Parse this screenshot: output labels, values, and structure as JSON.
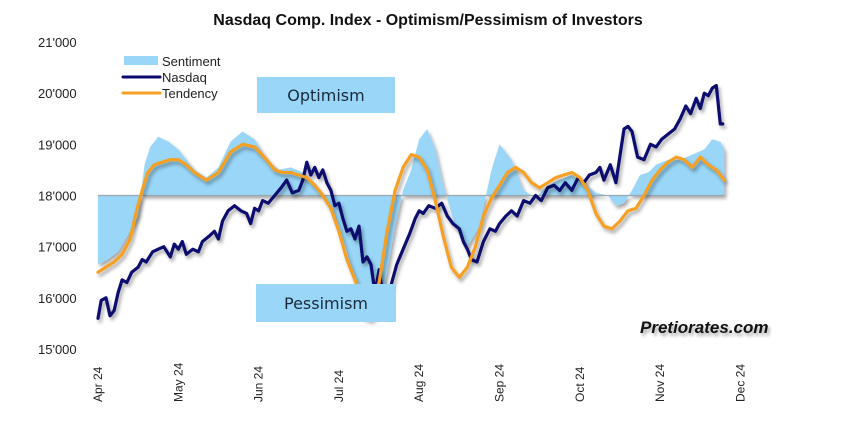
{
  "chart_data": {
    "type": "line",
    "title": "Nasdaq Comp. Index - Optimism/Pessimism of Investors",
    "xlabel": "",
    "ylabel": "",
    "ylim": [
      15000,
      21000
    ],
    "baseline": 18000,
    "yticks": [
      "15'000",
      "16'000",
      "17'000",
      "18'000",
      "19'000",
      "20'000",
      "21'000"
    ],
    "ytick_values": [
      15000,
      16000,
      17000,
      18000,
      19000,
      20000,
      21000
    ],
    "xticks": [
      "Apr 24",
      "May 24",
      "Jun 24",
      "Jul 24",
      "Aug 24",
      "Sep 24",
      "Oct 24",
      "Nov 24",
      "Dec 24"
    ],
    "x_unit": "months since Apr 24",
    "grid": false,
    "legend": {
      "position": "top-left",
      "entries": [
        {
          "name": "Sentiment",
          "kind": "area",
          "color": "#99d6f7"
        },
        {
          "name": "Nasdaq",
          "kind": "line",
          "color": "#0a0a6e"
        },
        {
          "name": "Tendency",
          "kind": "line",
          "color": "#f5a020"
        }
      ]
    },
    "annotations": [
      {
        "text": "Optimism",
        "x": 2.2,
        "y": 20000
      },
      {
        "text": "Pessimism",
        "x": 2.25,
        "y": 16100
      }
    ],
    "series": [
      {
        "name": "Sentiment",
        "color": "#99d6f7",
        "x": [
          0,
          0.12,
          0.25,
          0.4,
          0.5,
          0.58,
          0.65,
          0.75,
          0.88,
          1.0,
          1.1,
          1.2,
          1.35,
          1.5,
          1.65,
          1.8,
          1.95,
          2.1,
          2.25,
          2.4,
          2.55,
          2.7,
          2.85,
          3.0,
          3.1,
          3.2,
          3.3,
          3.4,
          3.5,
          3.6,
          3.7,
          3.8,
          3.9,
          4.0,
          4.1,
          4.2,
          4.3,
          4.45,
          4.6,
          4.75,
          4.9,
          5.0,
          5.15,
          5.3,
          5.45,
          5.6,
          5.75,
          5.9,
          6.05,
          6.2,
          6.35,
          6.45,
          6.55,
          6.65,
          6.75,
          6.85,
          6.95,
          7.1,
          7.25,
          7.4,
          7.55,
          7.65,
          7.75,
          7.8
        ],
        "values": [
          16650,
          16750,
          16900,
          17300,
          17600,
          18600,
          18950,
          19150,
          19050,
          18900,
          18700,
          18500,
          18350,
          18550,
          19050,
          19250,
          19100,
          18700,
          18500,
          18550,
          18450,
          18200,
          17900,
          17400,
          16900,
          16300,
          15600,
          15550,
          15700,
          16500,
          17400,
          18100,
          18500,
          19100,
          19300,
          18900,
          18200,
          17400,
          17000,
          17400,
          18500,
          19000,
          18700,
          18100,
          17950,
          18200,
          18300,
          18400,
          18250,
          18050,
          18000,
          17800,
          17850,
          18100,
          18400,
          18450,
          18600,
          18700,
          18700,
          18800,
          18900,
          19100,
          19050,
          18900
        ]
      },
      {
        "name": "Nasdaq",
        "color": "#0a0a6e",
        "x": [
          0,
          0.04,
          0.1,
          0.15,
          0.2,
          0.25,
          0.3,
          0.36,
          0.42,
          0.5,
          0.55,
          0.6,
          0.68,
          0.75,
          0.82,
          0.9,
          0.95,
          1.0,
          1.05,
          1.1,
          1.18,
          1.25,
          1.3,
          1.38,
          1.45,
          1.5,
          1.55,
          1.62,
          1.7,
          1.78,
          1.85,
          1.9,
          1.95,
          2.0,
          2.05,
          2.12,
          2.2,
          2.28,
          2.35,
          2.42,
          2.5,
          2.55,
          2.6,
          2.65,
          2.7,
          2.75,
          2.8,
          2.85,
          2.9,
          2.95,
          3.0,
          3.05,
          3.1,
          3.15,
          3.2,
          3.25,
          3.3,
          3.35,
          3.4,
          3.45,
          3.5,
          3.55,
          3.6,
          3.65,
          3.72,
          3.8,
          3.88,
          3.95,
          4.0,
          4.05,
          4.12,
          4.2,
          4.28,
          4.35,
          4.42,
          4.5,
          4.55,
          4.6,
          4.65,
          4.72,
          4.8,
          4.88,
          4.95,
          5.0,
          5.08,
          5.15,
          5.22,
          5.3,
          5.38,
          5.45,
          5.52,
          5.6,
          5.68,
          5.75,
          5.82,
          5.9,
          5.98,
          6.05,
          6.12,
          6.2,
          6.25,
          6.3,
          6.38,
          6.45,
          6.55,
          6.6,
          6.65,
          6.72,
          6.8,
          6.88,
          6.95,
          7.02,
          7.1,
          7.18,
          7.25,
          7.32,
          7.38,
          7.45,
          7.5,
          7.55,
          7.6,
          7.65,
          7.7,
          7.75,
          7.78
        ],
        "values": [
          15600,
          15950,
          16000,
          15650,
          15750,
          16100,
          16350,
          16300,
          16500,
          16600,
          16750,
          16700,
          16900,
          16950,
          17000,
          16800,
          17050,
          16950,
          17100,
          16850,
          16950,
          16900,
          17100,
          17200,
          17300,
          17150,
          17500,
          17700,
          17800,
          17700,
          17650,
          17450,
          17750,
          17700,
          17900,
          17850,
          18000,
          18150,
          18300,
          18050,
          18100,
          18300,
          18650,
          18400,
          18550,
          18350,
          18500,
          18250,
          18100,
          17800,
          17850,
          17550,
          17300,
          17350,
          17150,
          17400,
          16700,
          16800,
          16650,
          16100,
          16550,
          16000,
          15750,
          16250,
          16650,
          16950,
          17250,
          17550,
          17700,
          17650,
          17800,
          17750,
          17850,
          17600,
          17450,
          17350,
          17100,
          16950,
          16750,
          16700,
          17100,
          17350,
          17300,
          17450,
          17600,
          17700,
          17600,
          17900,
          17850,
          18000,
          17900,
          18150,
          18200,
          18100,
          18250,
          18100,
          18350,
          18250,
          18400,
          18450,
          18550,
          18300,
          18600,
          18250,
          19300,
          19350,
          19250,
          18750,
          18700,
          19000,
          18950,
          19100,
          19200,
          19300,
          19500,
          19750,
          19600,
          19900,
          19700,
          20000,
          19950,
          20100,
          20150,
          19400,
          19400
        ]
      },
      {
        "name": "Tendency",
        "color": "#f5a020",
        "x": [
          0,
          0.1,
          0.2,
          0.3,
          0.4,
          0.48,
          0.55,
          0.62,
          0.7,
          0.8,
          0.9,
          1.0,
          1.1,
          1.2,
          1.35,
          1.5,
          1.65,
          1.8,
          1.95,
          2.1,
          2.2,
          2.3,
          2.4,
          2.5,
          2.6,
          2.7,
          2.8,
          2.9,
          3.0,
          3.1,
          3.2,
          3.3,
          3.4,
          3.5,
          3.6,
          3.7,
          3.8,
          3.9,
          4.0,
          4.1,
          4.2,
          4.3,
          4.4,
          4.5,
          4.6,
          4.7,
          4.8,
          4.9,
          5.0,
          5.1,
          5.2,
          5.3,
          5.4,
          5.5,
          5.6,
          5.7,
          5.8,
          5.9,
          6.0,
          6.1,
          6.2,
          6.3,
          6.4,
          6.5,
          6.6,
          6.7,
          6.8,
          6.9,
          7.0,
          7.1,
          7.2,
          7.3,
          7.4,
          7.5,
          7.6,
          7.7,
          7.8
        ],
        "values": [
          16500,
          16600,
          16700,
          16850,
          17150,
          17700,
          18100,
          18450,
          18600,
          18650,
          18700,
          18700,
          18600,
          18450,
          18300,
          18450,
          18850,
          19000,
          18950,
          18700,
          18500,
          18450,
          18450,
          18400,
          18350,
          18200,
          18000,
          17750,
          17300,
          16750,
          16350,
          15950,
          15900,
          16300,
          17300,
          18100,
          18550,
          18800,
          18750,
          18500,
          17900,
          17200,
          16600,
          16400,
          16600,
          17000,
          17600,
          17950,
          18200,
          18450,
          18550,
          18450,
          18250,
          18150,
          18250,
          18350,
          18400,
          18450,
          18350,
          18100,
          17650,
          17400,
          17350,
          17500,
          17700,
          17750,
          18000,
          18300,
          18500,
          18650,
          18750,
          18700,
          18550,
          18750,
          18600,
          18500,
          18300
        ]
      }
    ]
  },
  "watermark": "Pretiorates.com"
}
